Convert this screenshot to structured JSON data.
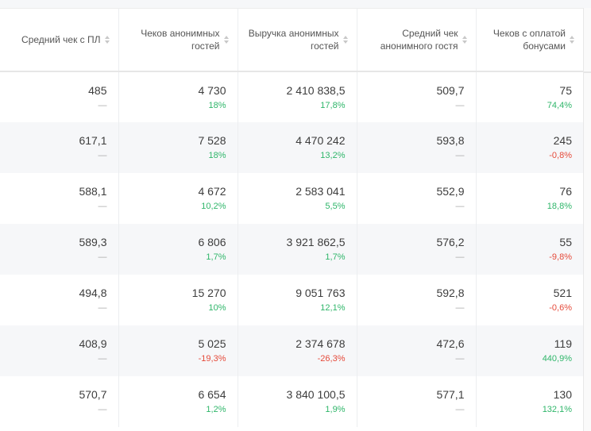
{
  "headers": [
    "Средний чек с ПЛ",
    "Чеков анонимных гостей",
    "Выручка анонимных гостей",
    "Средний чек анонимного гостя",
    "Чеков с оплатой бонусами"
  ],
  "rows": [
    [
      {
        "v": "485",
        "d": "—"
      },
      {
        "v": "4 730",
        "d": "18%"
      },
      {
        "v": "2 410 838,5",
        "d": "17,8%"
      },
      {
        "v": "509,7",
        "d": "—"
      },
      {
        "v": "75",
        "d": "74,4%"
      }
    ],
    [
      {
        "v": "617,1",
        "d": "—"
      },
      {
        "v": "7 528",
        "d": "18%"
      },
      {
        "v": "4 470 242",
        "d": "13,2%"
      },
      {
        "v": "593,8",
        "d": "—"
      },
      {
        "v": "245",
        "d": "-0,8%"
      }
    ],
    [
      {
        "v": "588,1",
        "d": "—"
      },
      {
        "v": "4 672",
        "d": "10,2%"
      },
      {
        "v": "2 583 041",
        "d": "5,5%"
      },
      {
        "v": "552,9",
        "d": "—"
      },
      {
        "v": "76",
        "d": "18,8%"
      }
    ],
    [
      {
        "v": "589,3",
        "d": "—"
      },
      {
        "v": "6 806",
        "d": "1,7%"
      },
      {
        "v": "3 921 862,5",
        "d": "1,7%"
      },
      {
        "v": "576,2",
        "d": "—"
      },
      {
        "v": "55",
        "d": "-9,8%"
      }
    ],
    [
      {
        "v": "494,8",
        "d": "—"
      },
      {
        "v": "15 270",
        "d": "10%"
      },
      {
        "v": "9 051 763",
        "d": "12,1%"
      },
      {
        "v": "592,8",
        "d": "—"
      },
      {
        "v": "521",
        "d": "-0,6%"
      }
    ],
    [
      {
        "v": "408,9",
        "d": "—"
      },
      {
        "v": "5 025",
        "d": "-19,3%"
      },
      {
        "v": "2 374 678",
        "d": "-26,3%"
      },
      {
        "v": "472,6",
        "d": "—"
      },
      {
        "v": "119",
        "d": "440,9%"
      }
    ],
    [
      {
        "v": "570,7",
        "d": "—"
      },
      {
        "v": "6 654",
        "d": "1,2%"
      },
      {
        "v": "3 840 100,5",
        "d": "1,9%"
      },
      {
        "v": "577,1",
        "d": "—"
      },
      {
        "v": "130",
        "d": "132,1%"
      }
    ]
  ],
  "colors": {
    "positive": "#2fb66a",
    "negative": "#e54a3a",
    "neutral": "#a8a8a8"
  }
}
